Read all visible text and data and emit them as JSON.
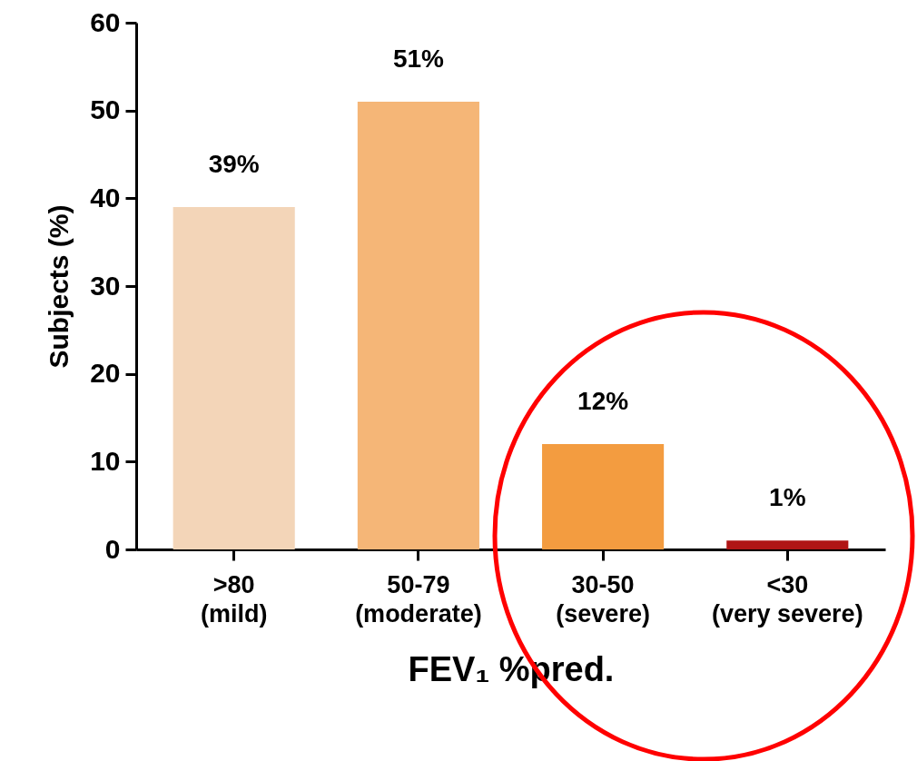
{
  "chart_data": {
    "type": "bar",
    "categories": [
      ">80\n(mild)",
      "50-79\n(moderate)",
      "30-50\n(severe)",
      "<30\n(very severe)"
    ],
    "values": [
      39,
      51,
      12,
      1
    ],
    "colors": [
      "#f3d5b8",
      "#f5b677",
      "#f39c40",
      "#b01515"
    ],
    "value_labels": [
      "39%",
      "51%",
      "12%",
      "1%"
    ],
    "ylabel": "Subjects (%)",
    "xlabel": "FEV₁ %pred.",
    "ylim": [
      0,
      60
    ],
    "yticks": [
      0,
      10,
      20,
      30,
      40,
      50,
      60
    ],
    "grid": false,
    "legend": false
  }
}
